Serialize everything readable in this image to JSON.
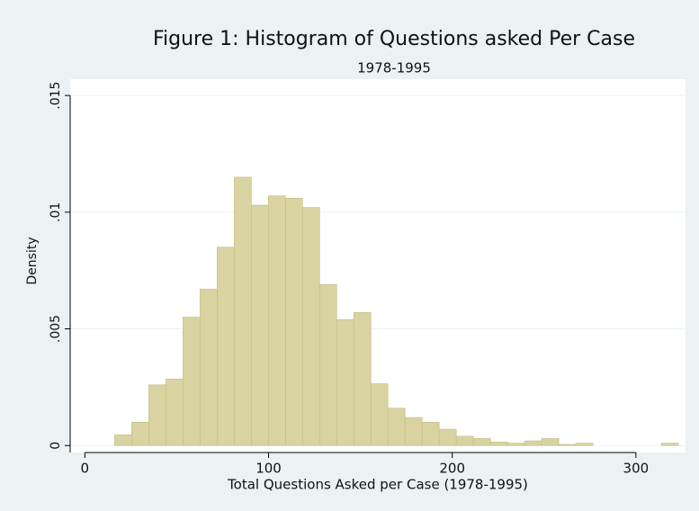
{
  "chart_data": {
    "type": "histogram",
    "title": "Figure 1: Histogram of Questions asked Per Case",
    "subtitle": "1978-1995",
    "x_label": "Total Questions Asked per Case (1978-1995)",
    "y_label": "Density",
    "bins": [
      16.2,
      25.5,
      34.8,
      44.1,
      53.4,
      62.7,
      72,
      81.3,
      90.6,
      99.9,
      109.2,
      118.5,
      127.8,
      137.1,
      146.4,
      155.7,
      165,
      174.3,
      183.6,
      192.9,
      202.2,
      211.5,
      220.8,
      230.1,
      239.4,
      248.7,
      258,
      267.3,
      276.6,
      285.9,
      295.2,
      304.5,
      313.8,
      323.1
    ],
    "values": [
      0.00046,
      0.001,
      0.0026,
      0.00285,
      0.0055,
      0.0067,
      0.0085,
      0.0115,
      0.0103,
      0.0107,
      0.0106,
      0.0102,
      0.0069,
      0.0054,
      0.0057,
      0.00265,
      0.0016,
      0.0012,
      0.001,
      0.0007,
      0.0004,
      0.0003,
      0.00015,
      0.0001,
      0.0002,
      0.0003,
      5e-05,
      0.0001,
      0,
      0,
      0,
      0,
      0.0001
    ],
    "color": "#d8d3a0",
    "xlim": [
      -8,
      327
    ],
    "xticks": [
      0,
      100,
      200,
      300
    ],
    "ylim": [
      -0.0003,
      0.0157
    ],
    "yticks": [
      0,
      {
        "value": 0.005,
        "label": ".005"
      },
      {
        "value": 0.01,
        "label": ".01"
      },
      {
        "value": 0.015,
        "label": ".015"
      }
    ],
    "grid": true
  }
}
